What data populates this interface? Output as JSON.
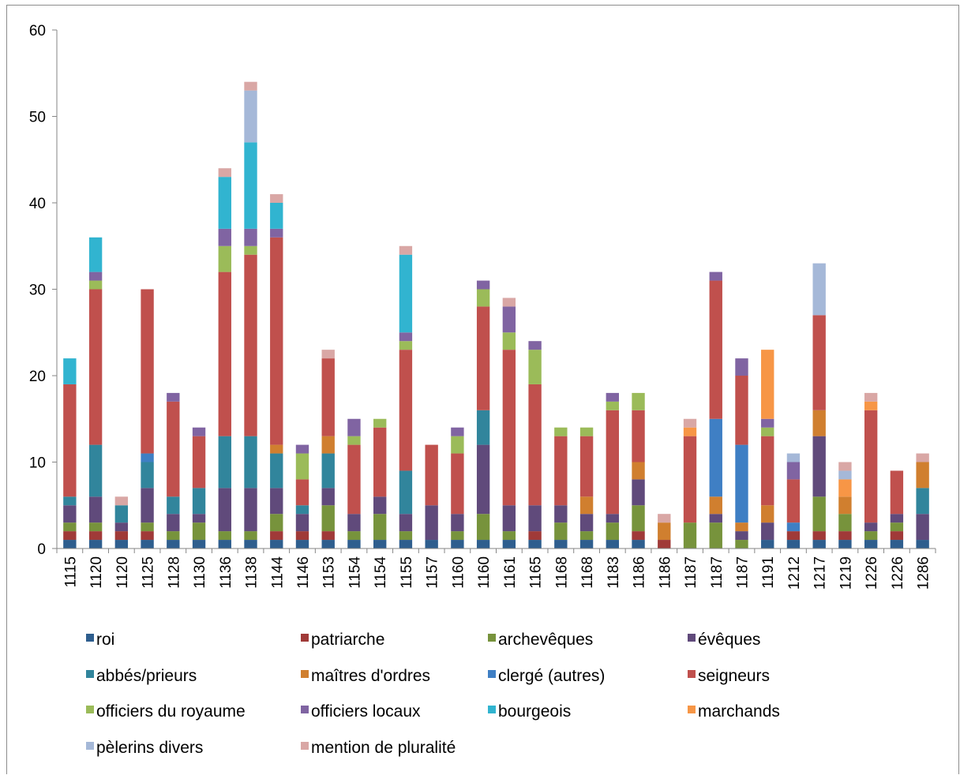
{
  "chart_data": {
    "type": "bar",
    "stacked": true,
    "title": "",
    "xlabel": "",
    "ylabel": "",
    "ylim": [
      0,
      60
    ],
    "yticks": [
      0,
      10,
      20,
      30,
      40,
      50,
      60
    ],
    "grid": false,
    "legend_position": "bottom",
    "categories": [
      "1115",
      "1120",
      "1120",
      "1125",
      "1128",
      "1130",
      "1136",
      "1138",
      "1144",
      "1146",
      "1153",
      "1154",
      "1154",
      "1155",
      "1157",
      "1160",
      "1160",
      "1161",
      "1165",
      "1168",
      "1168",
      "1183",
      "1186",
      "1186",
      "1187",
      "1187",
      "1187",
      "1191",
      "1212",
      "1217",
      "1219",
      "1226",
      "1226",
      "1286"
    ],
    "series": [
      {
        "name": "roi",
        "color": "#2E5E8E",
        "values": [
          1,
          1,
          1,
          1,
          1,
          1,
          1,
          1,
          1,
          1,
          1,
          1,
          1,
          1,
          1,
          1,
          1,
          1,
          1,
          1,
          1,
          1,
          1,
          0,
          0,
          0,
          0,
          1,
          1,
          1,
          1,
          1,
          1,
          1
        ]
      },
      {
        "name": "patriarche",
        "color": "#A03A38",
        "values": [
          1,
          1,
          1,
          1,
          0,
          0,
          0,
          0,
          1,
          1,
          1,
          0,
          0,
          0,
          0,
          0,
          0,
          0,
          1,
          0,
          0,
          0,
          1,
          1,
          0,
          0,
          0,
          0,
          1,
          1,
          1,
          0,
          1,
          0
        ]
      },
      {
        "name": "archevêques",
        "color": "#77933C",
        "values": [
          1,
          1,
          0,
          1,
          1,
          2,
          1,
          1,
          2,
          0,
          3,
          1,
          3,
          1,
          0,
          1,
          3,
          1,
          0,
          2,
          1,
          2,
          3,
          0,
          3,
          3,
          1,
          0,
          0,
          4,
          2,
          1,
          1,
          0
        ]
      },
      {
        "name": "évêques",
        "color": "#604A7B",
        "values": [
          2,
          3,
          1,
          4,
          2,
          1,
          5,
          5,
          3,
          2,
          2,
          2,
          2,
          2,
          4,
          2,
          8,
          3,
          3,
          2,
          2,
          1,
          3,
          0,
          0,
          1,
          1,
          2,
          0,
          7,
          0,
          1,
          1,
          3
        ]
      },
      {
        "name": "abbés/prieurs",
        "color": "#31859C",
        "values": [
          1,
          6,
          2,
          3,
          2,
          3,
          6,
          6,
          4,
          1,
          4,
          0,
          0,
          5,
          0,
          0,
          4,
          0,
          0,
          0,
          0,
          0,
          0,
          0,
          0,
          0,
          0,
          0,
          0,
          0,
          0,
          0,
          0,
          3
        ]
      },
      {
        "name": "maîtres d'ordres",
        "color": "#D07F2F",
        "values": [
          0,
          0,
          0,
          0,
          0,
          0,
          0,
          0,
          1,
          0,
          2,
          0,
          0,
          0,
          0,
          0,
          0,
          0,
          0,
          0,
          2,
          0,
          2,
          2,
          0,
          2,
          1,
          2,
          0,
          3,
          2,
          0,
          0,
          3
        ]
      },
      {
        "name": "clergé (autres)",
        "color": "#3F7FC4",
        "values": [
          0,
          0,
          0,
          1,
          0,
          0,
          0,
          0,
          0,
          0,
          0,
          0,
          0,
          0,
          0,
          0,
          0,
          0,
          0,
          0,
          0,
          0,
          0,
          0,
          0,
          9,
          9,
          0,
          1,
          0,
          0,
          0,
          0,
          0
        ]
      },
      {
        "name": "seigneurs",
        "color": "#C0504D",
        "values": [
          13,
          18,
          0,
          19,
          11,
          6,
          19,
          21,
          24,
          3,
          9,
          8,
          8,
          14,
          7,
          7,
          12,
          18,
          14,
          8,
          7,
          12,
          6,
          0,
          10,
          16,
          8,
          8,
          5,
          11,
          0,
          13,
          5,
          0
        ]
      },
      {
        "name": "officiers du royaume",
        "color": "#9BBB59",
        "values": [
          0,
          1,
          0,
          0,
          0,
          0,
          3,
          1,
          0,
          3,
          0,
          1,
          1,
          1,
          0,
          2,
          2,
          2,
          4,
          1,
          1,
          1,
          2,
          0,
          0,
          0,
          0,
          1,
          0,
          0,
          0,
          0,
          0,
          0
        ]
      },
      {
        "name": "officiers locaux",
        "color": "#8064A2",
        "values": [
          0,
          1,
          0,
          0,
          1,
          1,
          2,
          2,
          1,
          1,
          0,
          2,
          0,
          1,
          0,
          1,
          1,
          3,
          1,
          0,
          0,
          1,
          0,
          0,
          0,
          1,
          2,
          1,
          2,
          0,
          0,
          0,
          0,
          0
        ]
      },
      {
        "name": "bourgeois",
        "color": "#31B4D0",
        "values": [
          3,
          4,
          0,
          0,
          0,
          0,
          6,
          10,
          3,
          0,
          0,
          0,
          0,
          9,
          0,
          0,
          0,
          0,
          0,
          0,
          0,
          0,
          0,
          0,
          0,
          0,
          0,
          0,
          0,
          0,
          0,
          0,
          0,
          0
        ]
      },
      {
        "name": "marchands",
        "color": "#F79646",
        "values": [
          0,
          0,
          0,
          0,
          0,
          0,
          0,
          0,
          0,
          0,
          0,
          0,
          0,
          0,
          0,
          0,
          0,
          0,
          0,
          0,
          0,
          0,
          0,
          0,
          1,
          0,
          0,
          8,
          0,
          0,
          2,
          1,
          0,
          0
        ]
      },
      {
        "name": "pèlerins divers",
        "color": "#A5B8D8",
        "values": [
          0,
          0,
          0,
          0,
          0,
          0,
          0,
          6,
          0,
          0,
          0,
          0,
          0,
          0,
          0,
          0,
          0,
          0,
          0,
          0,
          0,
          0,
          0,
          0,
          0,
          0,
          0,
          0,
          1,
          6,
          1,
          0,
          0,
          0
        ]
      },
      {
        "name": "mention de pluralité",
        "color": "#D9A7A5",
        "values": [
          0,
          0,
          1,
          0,
          0,
          0,
          1,
          1,
          1,
          0,
          1,
          0,
          0,
          1,
          0,
          0,
          0,
          1,
          0,
          0,
          0,
          0,
          0,
          1,
          1,
          0,
          0,
          0,
          0,
          0,
          1,
          1,
          0,
          1
        ]
      }
    ]
  }
}
